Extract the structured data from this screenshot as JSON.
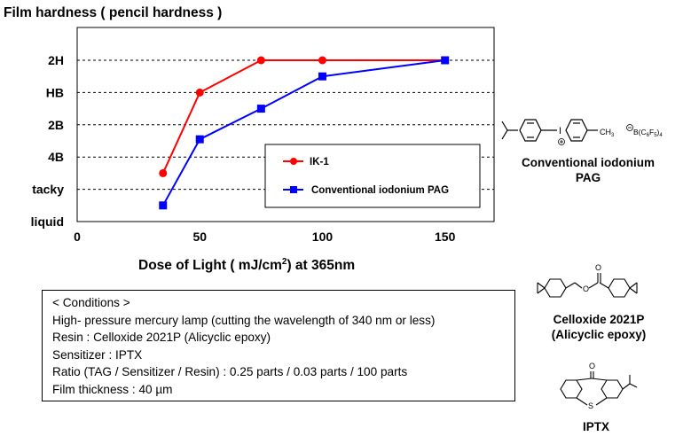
{
  "chart_data": {
    "type": "line",
    "title": "Film hardness ( pencil hardness )",
    "xlabel": "Dose of Light ( mJ/cm",
    "xlabel_sup": "2",
    "xlabel_tail": ") at 365nm",
    "x_ticks": [
      0,
      50,
      100,
      150
    ],
    "x_range": [
      0,
      170
    ],
    "y_categories": [
      "liquid",
      "tacky",
      "4B",
      "2B",
      "HB",
      "2H"
    ],
    "gridlines": "dashed at 2H, HB, 2B, 4B, tacky",
    "legend_position": "center-right",
    "series": [
      {
        "name": "IK-1",
        "color": "#ff0000",
        "marker": "circle",
        "x": [
          35,
          50,
          75,
          100,
          150
        ],
        "y": [
          1.5,
          4.0,
          5.0,
          5.0,
          5.0
        ]
      },
      {
        "name": "Conventional iodonium PAG",
        "color": "#0000ff",
        "marker": "square",
        "x": [
          35,
          50,
          75,
          100,
          150
        ],
        "y": [
          0.5,
          2.55,
          3.5,
          4.5,
          5.0
        ]
      }
    ]
  },
  "conditions": {
    "heading": "< Conditions >",
    "lines": [
      "High- pressure mercury lamp  (cutting the wavelength  of 340 nm or less)",
      "Resin : Celloxide 2021P (Alicyclic epoxy)",
      "Sensitizer : IPTX",
      "Ratio (TAG / Sensitizer / Resin) : 0.25 parts / 0.03 parts / 100 parts",
      "Film thickness : 40 µm"
    ]
  },
  "structures": {
    "iodonium": {
      "label_1": "Conventional iodonium",
      "label_2": "PAG",
      "iodine": "I",
      "methyl": "CH",
      "methyl_sub": "3",
      "anion": "B(C",
      "anion_sub_1": "6",
      "anion_mid": "F",
      "anion_sub_2": "5",
      "anion_tail": ")",
      "anion_sub_3": "4"
    },
    "celloxide": {
      "label_1": "Celloxide 2021P",
      "label_2": "(Alicyclic  epoxy)"
    },
    "iptx": {
      "label": "IPTX",
      "oxygen": "O",
      "sulfur": "S"
    }
  }
}
